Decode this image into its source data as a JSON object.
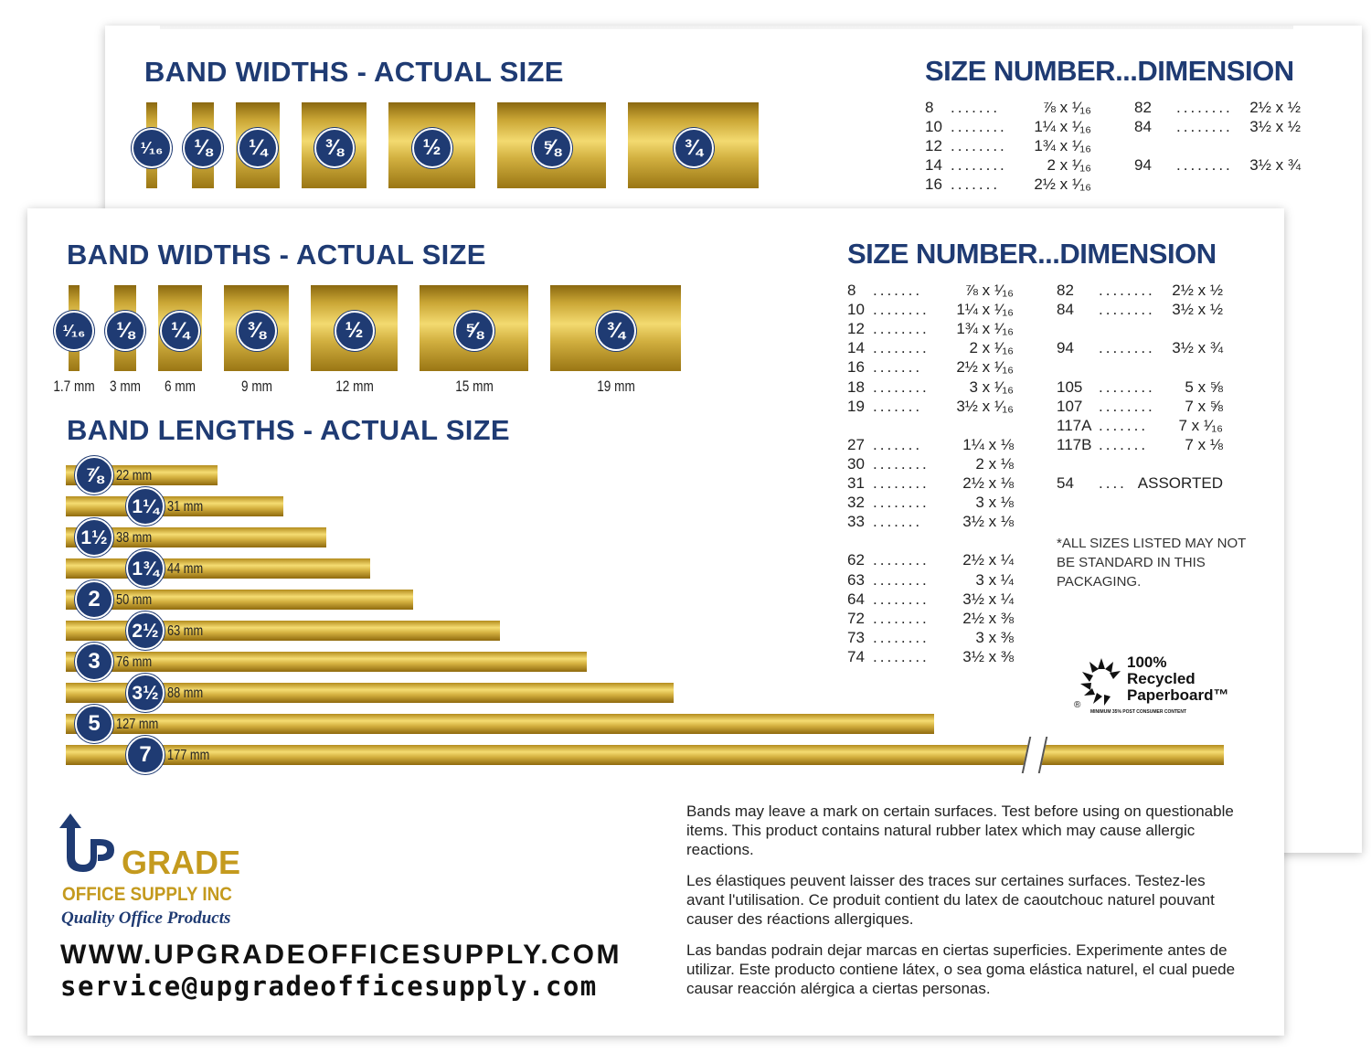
{
  "colors": {
    "navy": "#1f3b73",
    "gold": "#c9a534"
  },
  "widths_title": "BAND WIDTHS - ACTUAL SIZE",
  "widths": [
    {
      "label": "¹⁄₁₆",
      "inches": 0.0625,
      "mm": "1.7 mm"
    },
    {
      "label": "⅛",
      "inches": 0.125,
      "mm": "3 mm"
    },
    {
      "label": "¼",
      "inches": 0.25,
      "mm": "6 mm"
    },
    {
      "label": "⅜",
      "inches": 0.375,
      "mm": "9 mm"
    },
    {
      "label": "½",
      "inches": 0.5,
      "mm": "12 mm"
    },
    {
      "label": "⅝",
      "inches": 0.625,
      "mm": "15 mm"
    },
    {
      "label": "¾",
      "inches": 0.75,
      "mm": "19 mm"
    }
  ],
  "lengths_title": "BAND LENGTHS - ACTUAL SIZE",
  "lengths": [
    {
      "label": "⅞",
      "inches": 0.875,
      "mm": "22 mm"
    },
    {
      "label": "1¼",
      "inches": 1.25,
      "mm": "31 mm"
    },
    {
      "label": "1½",
      "inches": 1.5,
      "mm": "38 mm"
    },
    {
      "label": "1¾",
      "inches": 1.75,
      "mm": "44 mm"
    },
    {
      "label": "2",
      "inches": 2,
      "mm": "50 mm"
    },
    {
      "label": "2½",
      "inches": 2.5,
      "mm": "63 mm"
    },
    {
      "label": "3",
      "inches": 3,
      "mm": "76 mm"
    },
    {
      "label": "3½",
      "inches": 3.5,
      "mm": "88 mm"
    },
    {
      "label": "5",
      "inches": 5,
      "mm": "127 mm"
    },
    {
      "label": "7",
      "inches": 7,
      "mm": "177 mm",
      "axis_break": true
    }
  ],
  "size_title": "SIZE NUMBER...DIMENSION",
  "size_left": [
    {
      "num": "8",
      "dots": ".......",
      "dim": "⅞ x ¹⁄₁₆"
    },
    {
      "num": "10",
      "dots": "........",
      "dim": "1¼ x ¹⁄₁₆"
    },
    {
      "num": "12",
      "dots": "........",
      "dim": "1¾ x ¹⁄₁₆"
    },
    {
      "num": "14",
      "dots": "........",
      "dim": "2 x ¹⁄₁₆"
    },
    {
      "num": "16",
      "dots": ".......",
      "dim": "2½ x ¹⁄₁₆"
    },
    {
      "num": "18",
      "dots": "........",
      "dim": "3 x ¹⁄₁₆"
    },
    {
      "num": "19",
      "dots": ".......",
      "dim": "3½ x ¹⁄₁₆"
    },
    null,
    {
      "num": "27",
      "dots": ".......",
      "dim": "1¼ x ⅛"
    },
    {
      "num": "30",
      "dots": "........",
      "dim": "2 x ⅛"
    },
    {
      "num": "31",
      "dots": "........",
      "dim": "2½ x ⅛"
    },
    {
      "num": "32",
      "dots": "........",
      "dim": "3 x ⅛"
    },
    {
      "num": "33",
      "dots": ".......",
      "dim": "3½ x ⅛"
    },
    null,
    {
      "num": "62",
      "dots": "........",
      "dim": "2½ x ¼"
    },
    {
      "num": "63",
      "dots": "........",
      "dim": "3 x ¼"
    },
    {
      "num": "64",
      "dots": "........",
      "dim": "3½ x ¼"
    },
    {
      "num": "72",
      "dots": "........",
      "dim": "2½ x ⅜"
    },
    {
      "num": "73",
      "dots": "........",
      "dim": "3 x ⅜"
    },
    {
      "num": "74",
      "dots": "........",
      "dim": "3½ x ⅜"
    }
  ],
  "size_right": [
    {
      "num": "82",
      "dots": "........",
      "dim": "2½ x ½"
    },
    {
      "num": "84",
      "dots": "........",
      "dim": "3½ x ½"
    },
    null,
    {
      "num": "94",
      "dots": "........",
      "dim": "3½ x ¾"
    },
    null,
    {
      "num": "105",
      "dots": "........",
      "dim": "5 x ⅝"
    },
    {
      "num": "107",
      "dots": "........",
      "dim": "7 x ⅝"
    },
    {
      "num": "117A",
      "dots": ".......",
      "dim": "7 x ¹⁄₁₆"
    },
    {
      "num": "117B",
      "dots": ".......",
      "dim": "7 x ⅛"
    },
    null,
    {
      "num": "54",
      "dots": "....",
      "dim": "ASSORTED"
    }
  ],
  "size_note": "*ALL SIZES LISTED MAY NOT BE STANDARD IN THIS PACKAGING.",
  "recycled": {
    "line1": "100%",
    "line2": "Recycled",
    "line3": "Paperboard™",
    "fine": "MINIMUM 35% POST CONSUMER CONTENT"
  },
  "disclaimer": [
    "Bands may leave a mark on certain surfaces. Test before using on questionable items. This product contains natural rubber latex which may cause allergic reactions.",
    "Les élastiques peuvent laisser des traces sur certaines surfaces. Testez-les avant l'utilisation. Ce produit contient du latex de caoutchouc naturel pouvant causer des réactions allergiques.",
    "Las bandas podrain dejar marcas en ciertas superficies. Experimente antes de utilizar. Este producto contiene látex, o sea goma elástica naturel, el cual puede causar reacción alérgica a ciertas personas."
  ],
  "logo": {
    "brand_up": "UP",
    "brand_grade": "GRADE",
    "company": "OFFICE SUPPLY INC",
    "tagline": "Quality Office Products"
  },
  "website": "WWW.UPGRADEOFFICESUPPLY.COM",
  "email": "service@upgradeofficesupply.com"
}
